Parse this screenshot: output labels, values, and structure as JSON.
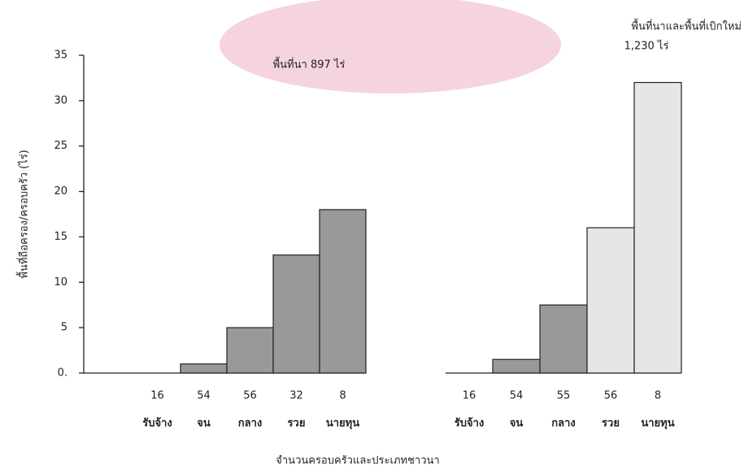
{
  "chart_data": [
    {
      "type": "bar",
      "title": "พื้นที่นา 897 ไร่",
      "ylabel": "พื้นที่ถือครอง/ครอบครัว (ไร่)",
      "xlabel": "จำนวนครอบครัวและประเภทชาวนา",
      "categories": [
        "รับจ้าง",
        "จน",
        "กลาง",
        "รวย",
        "นายทุน"
      ],
      "category_counts": [
        "16",
        "54",
        "56",
        "32",
        "8"
      ],
      "values": [
        0,
        1,
        5,
        13,
        18
      ],
      "colors": [
        "#999999",
        "#999999",
        "#999999",
        "#999999",
        "#999999"
      ],
      "ylim": [
        0,
        35
      ],
      "yticks": [
        {
          "value": 0,
          "label": "0."
        },
        5,
        10,
        15,
        20,
        25,
        30,
        35
      ]
    },
    {
      "type": "bar",
      "title": "พื้นที่นาและพื้นที่เบิกใหม่",
      "annotation": "1,230 ไร่",
      "categories": [
        "รับจ้าง",
        "จน",
        "กลาง",
        "รวย",
        "นายทุน"
      ],
      "category_counts": [
        "16",
        "54",
        "55",
        "56",
        "8"
      ],
      "values": [
        0,
        1.5,
        7.5,
        16,
        32
      ],
      "colors": [
        "#999999",
        "#999999",
        "#999999",
        "#e6e6e6",
        "#e6e6e6"
      ],
      "ylim": [
        0,
        35
      ]
    }
  ]
}
